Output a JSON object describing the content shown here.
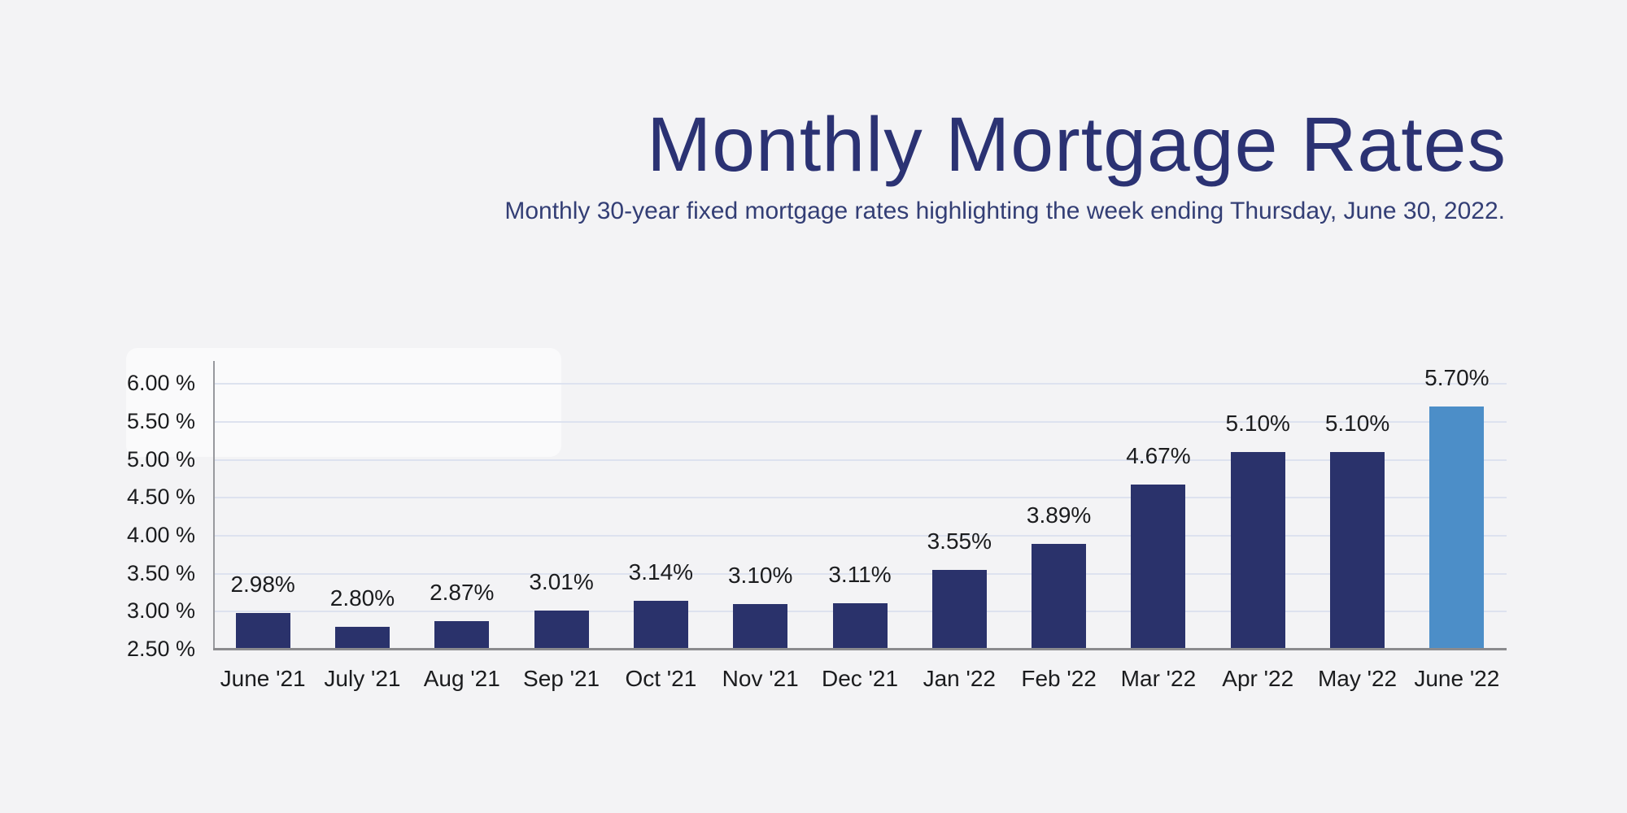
{
  "page": {
    "background_color": "#f3f3f5"
  },
  "chart_data": {
    "type": "bar",
    "title": "Monthly Mortgage Rates",
    "subtitle": "Monthly 30-year fixed mortgage rates highlighting the week ending Thursday, June 30, 2022.",
    "categories": [
      "June '21",
      "July '21",
      "Aug '21",
      "Sep '21",
      "Oct '21",
      "Nov '21",
      "Dec '21",
      "Jan '22",
      "Feb '22",
      "Mar '22",
      "Apr '22",
      "May '22",
      "June '22"
    ],
    "values": [
      2.98,
      2.8,
      2.87,
      3.01,
      3.14,
      3.1,
      3.11,
      3.55,
      3.89,
      4.67,
      5.1,
      5.1,
      5.7
    ],
    "value_labels": [
      "2.98%",
      "2.80%",
      "2.87%",
      "3.01%",
      "3.14%",
      "3.10%",
      "3.11%",
      "3.55%",
      "3.89%",
      "4.67%",
      "5.10%",
      "5.10%",
      "5.70%"
    ],
    "highlighted_category": "June '22",
    "highlight_index": 12,
    "ylim": [
      2.5,
      6.3
    ],
    "y_ticks": [
      {
        "label": "6.00 %",
        "value": 6.0
      },
      {
        "label": "5.50 %",
        "value": 5.5
      },
      {
        "label": "5.00 %",
        "value": 5.0
      },
      {
        "label": "4.50 %",
        "value": 4.5
      },
      {
        "label": "4.00 %",
        "value": 4.0
      },
      {
        "label": "3.50 %",
        "value": 3.5
      },
      {
        "label": "3.00 %",
        "value": 3.0
      },
      {
        "label": "2.50 %",
        "value": 2.5
      }
    ],
    "grid": true,
    "legend": false,
    "colors": {
      "bar": "#2a326b",
      "highlight_bar": "#4c8ec8",
      "gridline": "#dde2ef",
      "axis_y": "#98999e",
      "axis_x": "#8b8b8e",
      "label": "#1b1c1e",
      "title": "#2b3273"
    }
  }
}
